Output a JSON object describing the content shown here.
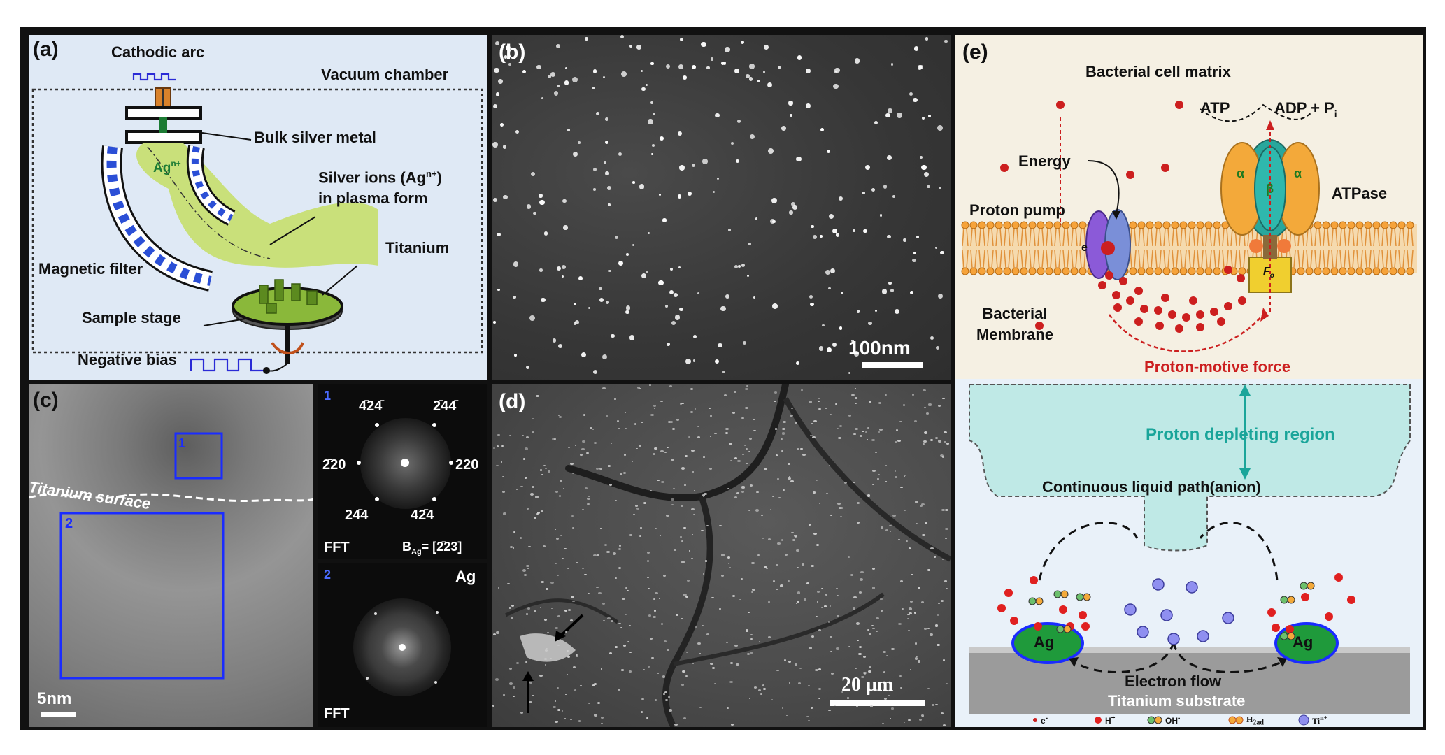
{
  "panel_a": {
    "label": "(a)",
    "cathodic_arc": "Cathodic arc",
    "vacuum_chamber": "Vacuum chamber",
    "bulk_silver": "Bulk silver metal",
    "ag_ion": "Ag",
    "ag_ion_sup": "n+",
    "silver_ions_line1": "Silver ions (Ag",
    "silver_ions_sup": "n+",
    "silver_ions_close": ")",
    "silver_ions_line2": "in plasma form",
    "titanium": "Titanium",
    "magnetic_filter": "Magnetic filter",
    "sample_stage": "Sample stage",
    "negative_bias": "Negative bias"
  },
  "panel_b": {
    "label": "(b)",
    "scale": "100nm"
  },
  "panel_c": {
    "label": "(c)",
    "surface": "Titanium surface",
    "box1": "1",
    "box2": "2",
    "scale": "5nm",
    "fft1": {
      "num": "1",
      "s_tl": "4̄24̄",
      "s_tr": "2̄44̄",
      "s_l": "2̄20",
      "s_r": "220",
      "s_bl": "24̄4",
      "s_br": "42̄4",
      "fft": "FFT",
      "zone": "B",
      "zone_sub": "Ag",
      "zone_val": "= [2̄23]"
    },
    "fft2": {
      "num": "2",
      "ag": "Ag",
      "fft": "FFT"
    }
  },
  "panel_d": {
    "label": "(d)",
    "scale": "20 μm"
  },
  "panel_e": {
    "label": "(e)",
    "cell_matrix": "Bacterial cell matrix",
    "atp": "ATP",
    "adp": "ADP + P",
    "adp_sub": "i",
    "energy": "Energy",
    "proton_pump": "Proton pump",
    "atpase": "ATPase",
    "alpha": "α",
    "beta": "β",
    "fo": "F",
    "fo_sub": "o",
    "e_minus": "e",
    "membrane1": "Bacterial",
    "membrane2": "Membrane",
    "pmf": "Proton-motive force",
    "depleting": "Proton depleting region",
    "liquid_path": "Continuous liquid path(anion)",
    "ag": "Ag",
    "electron_flow": "Electron flow",
    "substrate": "Titanium substrate",
    "legend": {
      "e": "e",
      "h": "H",
      "oh": "OH",
      "h2": "H",
      "h2_sub": "2ad",
      "ti": "Ti",
      "ti_sup": "n+"
    }
  },
  "colors": {
    "panel_a_bg": "#dfe9f5",
    "plasma_green": "#c9e07a",
    "pmf_red": "#cc1f1f",
    "depleting_teal": "#1aa59a",
    "ag_green": "#1f9a3b",
    "top_e_bg": "#f5f0e3",
    "bottom_e_bg": "#e9f1f9"
  }
}
